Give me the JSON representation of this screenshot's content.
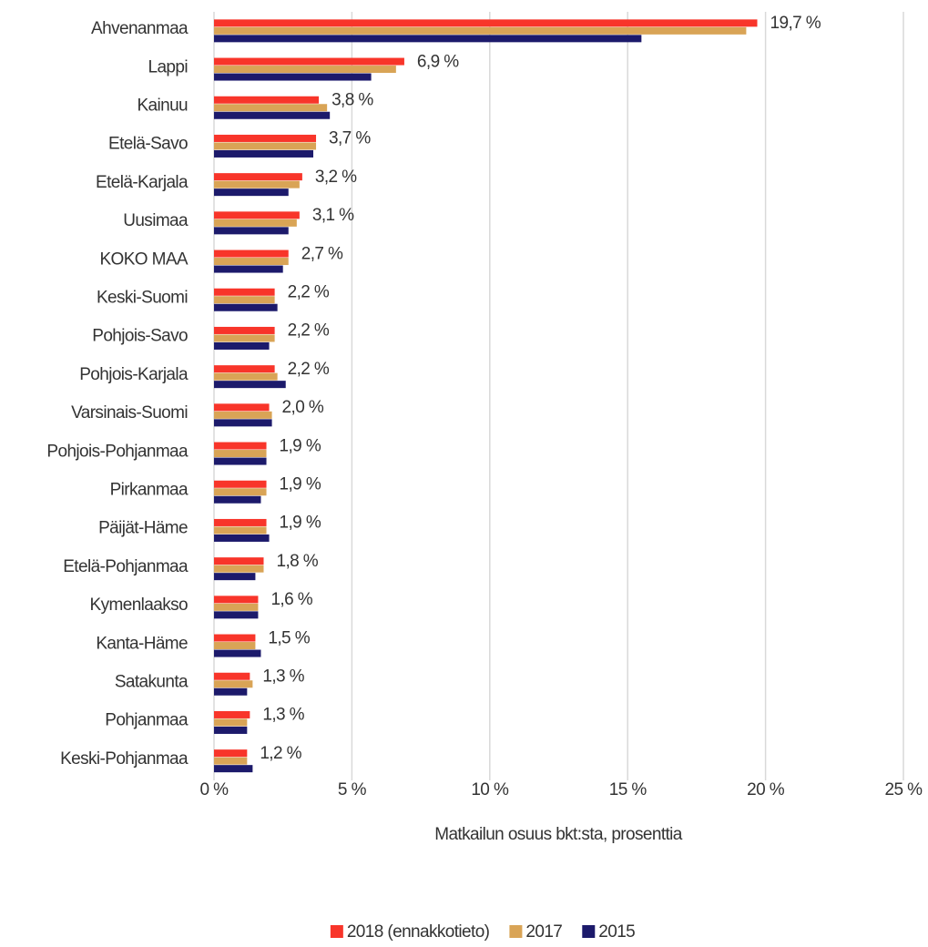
{
  "chart_data": {
    "type": "bar",
    "orientation": "horizontal",
    "xlabel": "Matkailun osuus bkt:sta, prosenttia",
    "categories": [
      "Ahvenanmaa",
      "Lappi",
      "Kainuu",
      "Etelä-Savo",
      "Etelä-Karjala",
      "Uusimaa",
      "KOKO MAA",
      "Keski-Suomi",
      "Pohjois-Savo",
      "Pohjois-Karjala",
      "Varsinais-Suomi",
      "Pohjois-Pohjanmaa",
      "Pirkanmaa",
      "Päijät-Häme",
      "Etelä-Pohjanmaa",
      "Kymenlaakso",
      "Kanta-Häme",
      "Satakunta",
      "Pohjanmaa",
      "Keski-Pohjanmaa"
    ],
    "series": [
      {
        "name": "2018 (ennakkotieto)",
        "color": "#f8352a",
        "values": [
          19.7,
          6.9,
          3.8,
          3.7,
          3.2,
          3.1,
          2.7,
          2.2,
          2.2,
          2.2,
          2.0,
          1.9,
          1.9,
          1.9,
          1.8,
          1.6,
          1.5,
          1.3,
          1.3,
          1.2
        ],
        "value_labels": [
          "19,7 %",
          "6,9 %",
          "3,8 %",
          "3,7 %",
          "3,2 %",
          "3,1 %",
          "2,7 %",
          "2,2 %",
          "2,2 %",
          "2,2 %",
          "2,0 %",
          "1,9 %",
          "1,9 %",
          "1,9 %",
          "1,8 %",
          "1,6 %",
          "1,5 %",
          "1,3 %",
          "1,3 %",
          "1,2 %"
        ]
      },
      {
        "name": "2017",
        "color": "#d9a456",
        "values": [
          19.3,
          6.6,
          4.1,
          3.7,
          3.1,
          3.0,
          2.7,
          2.2,
          2.2,
          2.3,
          2.1,
          1.9,
          1.9,
          1.9,
          1.8,
          1.6,
          1.5,
          1.4,
          1.2,
          1.2
        ]
      },
      {
        "name": "2015",
        "color": "#1c1a6b",
        "values": [
          15.5,
          5.7,
          4.2,
          3.6,
          2.7,
          2.7,
          2.5,
          2.3,
          2.0,
          2.6,
          2.1,
          1.9,
          1.7,
          2.0,
          1.5,
          1.6,
          1.7,
          1.2,
          1.2,
          1.4
        ]
      }
    ],
    "xlim": [
      0,
      25
    ],
    "xticks": [
      {
        "value": 0,
        "label": "0 %"
      },
      {
        "value": 5,
        "label": "5 %"
      },
      {
        "value": 10,
        "label": "10 %"
      },
      {
        "value": 15,
        "label": "15 %"
      },
      {
        "value": 20,
        "label": "20 %"
      },
      {
        "value": 25,
        "label": "25 %"
      }
    ],
    "grid": true,
    "legend": "bottom"
  }
}
